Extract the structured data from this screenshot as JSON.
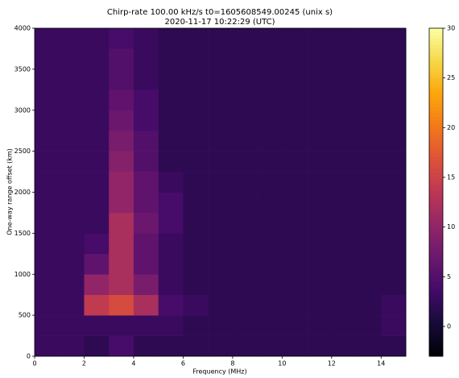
{
  "chart_data": {
    "type": "heatmap",
    "title": "Chirp-rate 100.00 kHz/s t0=1605608549.00245 (unix s)",
    "subtitle": "2020-11-17 10:22:29 (UTC)",
    "x_label": "Frequency (MHz)",
    "y_label": "One-way range offset (km)",
    "xlim": [
      0,
      15
    ],
    "xticks": [
      0,
      2,
      4,
      6,
      8,
      10,
      12,
      14
    ],
    "ylim": [
      0,
      4000
    ],
    "yticks": [
      0,
      500,
      1000,
      1500,
      2000,
      2500,
      3000,
      3500,
      4000
    ],
    "colormap": "inferno",
    "clim": [
      -3,
      30
    ],
    "cticks": [
      0,
      5,
      10,
      15,
      20,
      25,
      30
    ],
    "values": [
      [
        3,
        3,
        2,
        4,
        2,
        2,
        2,
        2,
        2,
        2,
        2,
        2,
        2,
        2,
        2
      ],
      [
        3,
        3,
        3,
        3,
        3,
        3,
        2,
        2,
        2,
        2,
        2,
        2,
        2,
        2,
        3
      ],
      [
        3,
        3,
        14,
        16,
        12,
        4,
        3,
        2,
        2,
        2,
        2,
        2,
        2,
        2,
        3
      ],
      [
        3,
        3,
        10,
        12,
        8,
        3,
        2,
        2,
        2,
        2,
        2,
        2,
        2,
        2,
        2
      ],
      [
        3,
        3,
        6,
        12,
        6,
        3,
        2,
        2,
        2,
        2,
        2,
        2,
        2,
        2,
        2
      ],
      [
        3,
        3,
        4,
        12,
        6,
        3,
        2,
        2,
        2,
        2,
        2,
        2,
        2,
        2,
        2
      ],
      [
        3,
        3,
        3,
        12,
        7,
        4,
        2,
        2,
        2,
        2,
        2,
        2,
        2,
        2,
        2
      ],
      [
        3,
        3,
        3,
        10,
        6,
        4,
        2,
        2,
        2,
        2,
        2,
        2,
        2,
        2,
        2
      ],
      [
        3,
        3,
        3,
        10,
        6,
        3,
        2,
        2,
        2,
        2,
        2,
        2,
        2,
        2,
        2
      ],
      [
        3,
        3,
        3,
        9,
        5,
        2,
        2,
        2,
        2,
        2,
        2,
        2,
        2,
        2,
        2
      ],
      [
        3,
        3,
        3,
        8,
        5,
        2,
        2,
        2,
        2,
        2,
        2,
        2,
        2,
        2,
        2
      ],
      [
        3,
        3,
        3,
        7,
        4,
        2,
        2,
        2,
        2,
        2,
        2,
        2,
        2,
        2,
        2
      ],
      [
        3,
        3,
        3,
        6,
        4,
        2,
        2,
        2,
        2,
        2,
        2,
        2,
        2,
        2,
        2
      ],
      [
        3,
        3,
        3,
        5,
        3,
        2,
        2,
        2,
        2,
        2,
        2,
        2,
        2,
        2,
        2
      ],
      [
        3,
        3,
        3,
        5,
        3,
        2,
        2,
        2,
        2,
        2,
        2,
        2,
        2,
        2,
        2
      ],
      [
        3,
        3,
        3,
        4,
        3,
        2,
        2,
        2,
        2,
        2,
        2,
        2,
        2,
        2,
        2
      ]
    ]
  }
}
